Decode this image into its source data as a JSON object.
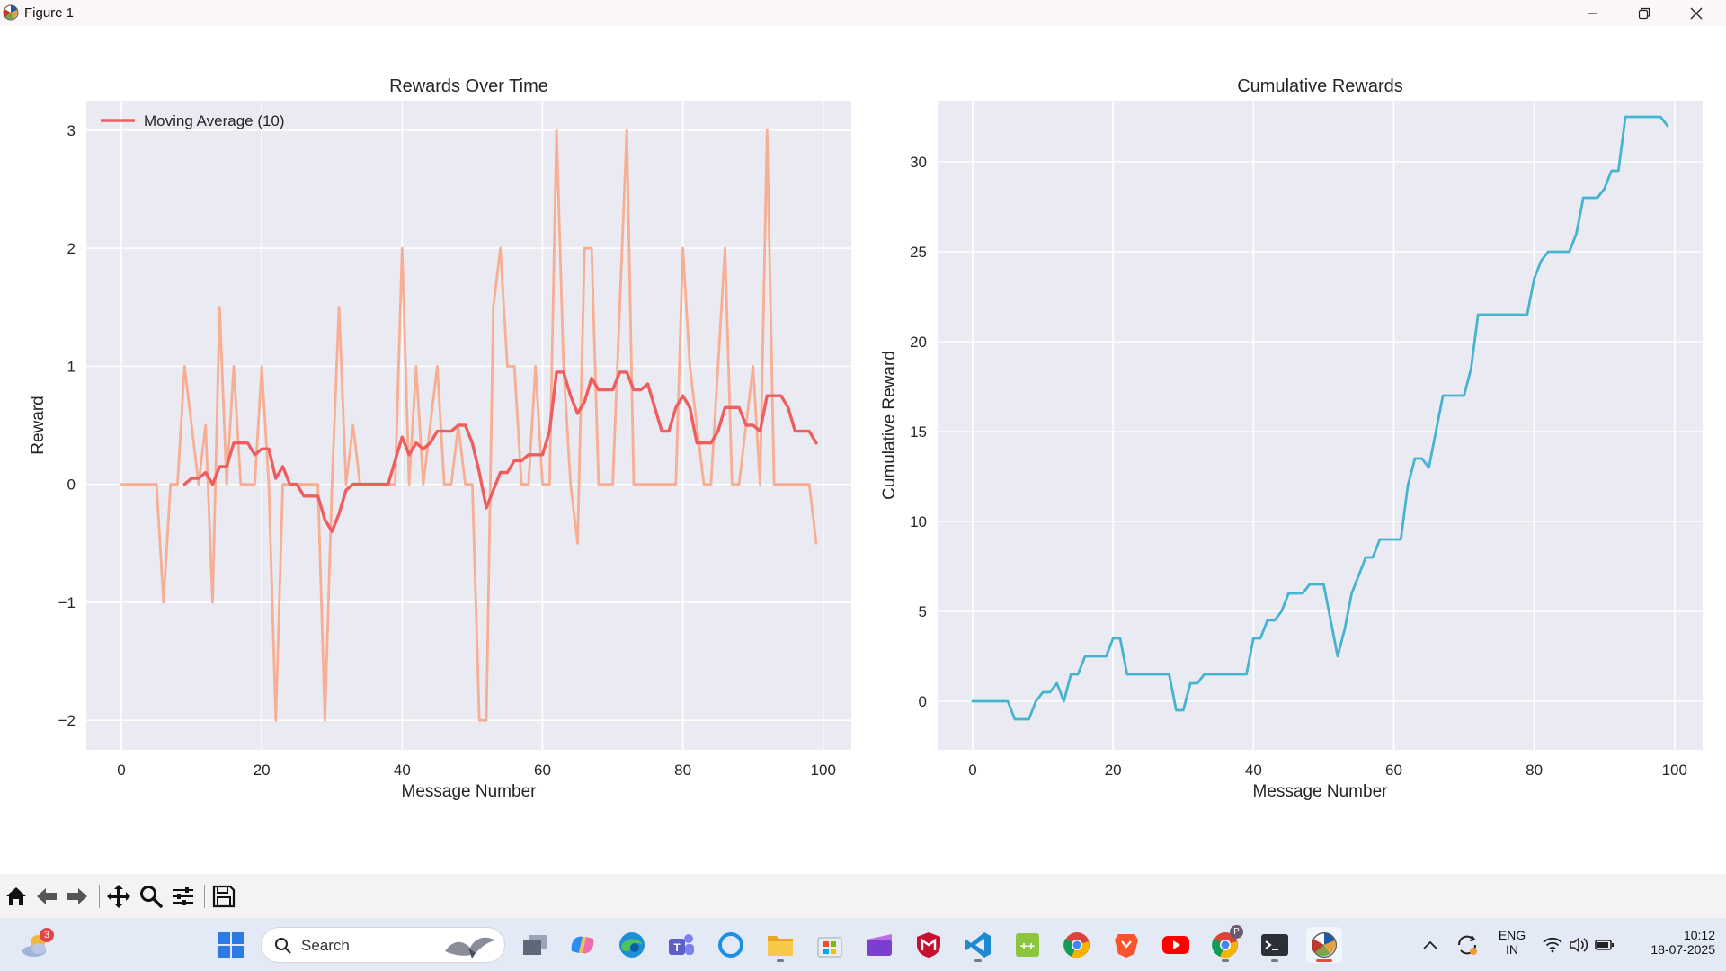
{
  "window": {
    "title": "Figure 1",
    "controls": [
      "minimize-icon",
      "restore-icon",
      "close-icon"
    ]
  },
  "charts": [
    {
      "type": "line",
      "title": "Rewards Over Time",
      "xlabel": "Message Number",
      "ylabel": "Reward",
      "xlim": [
        -5,
        104
      ],
      "ylim": [
        -2.25,
        3.25
      ],
      "xticks": [
        0,
        20,
        40,
        60,
        80,
        100
      ],
      "yticks": [
        -2,
        -1,
        0,
        1,
        2,
        3
      ],
      "ytick_labels": [
        "−2",
        "−1",
        "0",
        "1",
        "2",
        "3"
      ],
      "grid": true,
      "legend": {
        "position": "upper-left",
        "entries": [
          "Moving Average (10)"
        ]
      },
      "series": [
        {
          "color": "#f8ae93",
          "x": [
            0,
            1,
            2,
            3,
            4,
            5,
            6,
            7,
            8,
            9,
            10,
            11,
            12,
            13,
            14,
            15,
            16,
            17,
            18,
            19,
            20,
            21,
            22,
            23,
            24,
            25,
            26,
            27,
            28,
            29,
            30,
            31,
            32,
            33,
            34,
            35,
            36,
            37,
            38,
            39,
            40,
            41,
            42,
            43,
            44,
            45,
            46,
            47,
            48,
            49,
            50,
            51,
            52,
            53,
            54,
            55,
            56,
            57,
            58,
            59,
            60,
            61,
            62,
            63,
            64,
            65,
            66,
            67,
            68,
            69,
            70,
            71,
            72,
            73,
            74,
            75,
            76,
            77,
            78,
            79,
            80,
            81,
            82,
            83,
            84,
            85,
            86,
            87,
            88,
            89,
            90,
            91,
            92,
            93,
            94,
            95,
            96,
            97,
            98,
            99
          ],
          "y": [
            0,
            0,
            0,
            0,
            0,
            0,
            -1,
            0,
            0,
            1,
            0.5,
            0,
            0.5,
            -1,
            1.5,
            0,
            1,
            0,
            0,
            0,
            1,
            0,
            -2,
            0,
            0,
            0,
            0,
            0,
            0,
            -2,
            0,
            1.5,
            0,
            0.5,
            0,
            0,
            0,
            0,
            0,
            0,
            2,
            0,
            1,
            0,
            0.5,
            1,
            0,
            0,
            0.5,
            0,
            0,
            -2,
            -2,
            1.5,
            2,
            1,
            1,
            0,
            0,
            1,
            0,
            0,
            3,
            1,
            0,
            -0.5,
            2,
            2,
            0,
            0,
            0,
            1.5,
            3,
            0,
            0,
            0,
            0,
            0,
            0,
            0,
            2,
            1,
            0.5,
            0,
            0,
            1,
            2,
            0,
            0,
            0.5,
            1,
            0,
            3,
            0,
            0,
            0,
            0,
            0,
            0,
            -0.5
          ]
        },
        {
          "name": "Moving Average (10)",
          "color": "#ee5e5e",
          "x": [
            9,
            10,
            11,
            12,
            13,
            14,
            15,
            16,
            17,
            18,
            19,
            20,
            21,
            22,
            23,
            24,
            25,
            26,
            27,
            28,
            29,
            30,
            31,
            32,
            33,
            34,
            35,
            36,
            37,
            38,
            39,
            40,
            41,
            42,
            43,
            44,
            45,
            46,
            47,
            48,
            49,
            50,
            51,
            52,
            53,
            54,
            55,
            56,
            57,
            58,
            59,
            60,
            61,
            62,
            63,
            64,
            65,
            66,
            67,
            68,
            69,
            70,
            71,
            72,
            73,
            74,
            75,
            76,
            77,
            78,
            79,
            80,
            81,
            82,
            83,
            84,
            85,
            86,
            87,
            88,
            89,
            90,
            91,
            92,
            93,
            94,
            95,
            96,
            97,
            98,
            99
          ],
          "y": [
            0,
            0.05,
            0.05,
            0.1,
            0,
            0.15,
            0.15,
            0.35,
            0.35,
            0.35,
            0.25,
            0.3,
            0.3,
            0.05,
            0.15,
            0,
            0,
            -0.1,
            -0.1,
            -0.1,
            -0.3,
            -0.4,
            -0.25,
            -0.05,
            0,
            0,
            0,
            0,
            0,
            0,
            0.2,
            0.4,
            0.25,
            0.35,
            0.3,
            0.35,
            0.45,
            0.45,
            0.45,
            0.5,
            0.5,
            0.35,
            0.1,
            -0.2,
            -0.05,
            0.1,
            0.1,
            0.2,
            0.2,
            0.25,
            0.25,
            0.25,
            0.45,
            0.95,
            0.95,
            0.75,
            0.6,
            0.7,
            0.9,
            0.8,
            0.8,
            0.8,
            0.95,
            0.95,
            0.8,
            0.8,
            0.85,
            0.65,
            0.45,
            0.45,
            0.65,
            0.75,
            0.65,
            0.35,
            0.35,
            0.35,
            0.45,
            0.65,
            0.65,
            0.65,
            0.5,
            0.5,
            0.45,
            0.75,
            0.75,
            0.75,
            0.65,
            0.45,
            0.45,
            0.45,
            0.35
          ]
        }
      ]
    },
    {
      "type": "line",
      "title": "Cumulative Rewards",
      "xlabel": "Message Number",
      "ylabel": "Cumulative Reward",
      "xlim": [
        -5,
        104
      ],
      "ylim": [
        -2.7,
        33.4
      ],
      "xticks": [
        0,
        20,
        40,
        60,
        80,
        100
      ],
      "yticks": [
        0,
        5,
        10,
        15,
        20,
        25,
        30
      ],
      "ytick_labels": [
        "0",
        "5",
        "10",
        "15",
        "20",
        "25",
        "30"
      ],
      "grid": true,
      "series": [
        {
          "color": "#46b3cf",
          "x": [
            0,
            1,
            2,
            3,
            4,
            5,
            6,
            7,
            8,
            9,
            10,
            11,
            12,
            13,
            14,
            15,
            16,
            17,
            18,
            19,
            20,
            21,
            22,
            23,
            24,
            25,
            26,
            27,
            28,
            29,
            30,
            31,
            32,
            33,
            34,
            35,
            36,
            37,
            38,
            39,
            40,
            41,
            42,
            43,
            44,
            45,
            46,
            47,
            48,
            49,
            50,
            51,
            52,
            53,
            54,
            55,
            56,
            57,
            58,
            59,
            60,
            61,
            62,
            63,
            64,
            65,
            66,
            67,
            68,
            69,
            70,
            71,
            72,
            73,
            74,
            75,
            76,
            77,
            78,
            79,
            80,
            81,
            82,
            83,
            84,
            85,
            86,
            87,
            88,
            89,
            90,
            91,
            92,
            93,
            94,
            95,
            96,
            97,
            98,
            99
          ],
          "y": [
            0,
            0,
            0,
            0,
            0,
            0,
            -1,
            -1,
            -1,
            0,
            0.5,
            0.5,
            1,
            0,
            1.5,
            1.5,
            2.5,
            2.5,
            2.5,
            2.5,
            3.5,
            3.5,
            1.5,
            1.5,
            1.5,
            1.5,
            1.5,
            1.5,
            1.5,
            -0.5,
            -0.5,
            1,
            1,
            1.5,
            1.5,
            1.5,
            1.5,
            1.5,
            1.5,
            1.5,
            3.5,
            3.5,
            4.5,
            4.5,
            5,
            6,
            6,
            6,
            6.5,
            6.5,
            6.5,
            4.5,
            2.5,
            4,
            6,
            7,
            8,
            8,
            9,
            9,
            9,
            9,
            12,
            13.5,
            13.5,
            13,
            15,
            17,
            17,
            17,
            17,
            18.5,
            21.5,
            21.5,
            21.5,
            21.5,
            21.5,
            21.5,
            21.5,
            21.5,
            23.5,
            24.5,
            25,
            25,
            25,
            25,
            26,
            28,
            28,
            28,
            28.5,
            29.5,
            29.5,
            32.5,
            32.5,
            32.5,
            32.5,
            32.5,
            32.5,
            32
          ]
        }
      ]
    }
  ],
  "toolbar": {
    "buttons": [
      "home-icon",
      "back-icon",
      "forward-icon",
      "pan-icon",
      "zoom-icon",
      "configure-subplots-icon",
      "save-icon"
    ]
  },
  "taskbar": {
    "weather_badge": "3",
    "search_placeholder": "Search",
    "apps": [
      "task-view",
      "copilot",
      "edge",
      "teams",
      "cortana",
      "file-explorer",
      "microsoft-store",
      "clipchamp",
      "mcafee",
      "vscode",
      "notepad-plus",
      "chrome",
      "brave",
      "youtube",
      "chrome-profile",
      "terminal",
      "matplotlib"
    ],
    "profile_badge": "P",
    "language_line1": "ENG",
    "language_line2": "IN",
    "time": "10:12",
    "date": "18-07-2025"
  }
}
